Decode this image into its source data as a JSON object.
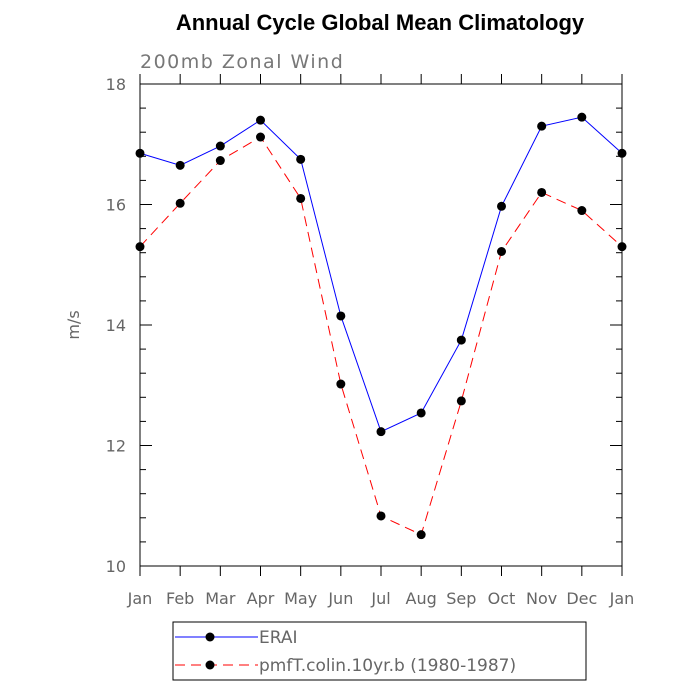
{
  "chart_data": {
    "type": "line",
    "title": "Annual Cycle Global Mean Climatology",
    "subtitle": "200mb Zonal Wind",
    "xlabel": "",
    "ylabel": "m/s",
    "categories": [
      "Jan",
      "Feb",
      "Mar",
      "Apr",
      "May",
      "Jun",
      "Jul",
      "Aug",
      "Sep",
      "Oct",
      "Nov",
      "Dec",
      "Jan"
    ],
    "ylim": [
      10,
      18
    ],
    "yticks": [
      "10",
      "12",
      "14",
      "16",
      "18"
    ],
    "grid": false,
    "legend_position": "bottom",
    "series": [
      {
        "name": "ERAI",
        "color": "#0000ff",
        "line_style": "solid",
        "marker": "filled-circle",
        "values": [
          16.85,
          16.65,
          16.97,
          17.4,
          16.75,
          14.15,
          12.23,
          12.54,
          13.75,
          15.97,
          17.3,
          17.45,
          16.85
        ]
      },
      {
        "name": "pmfT.colin.10yr.b (1980-1987)",
        "color": "#ff0000",
        "line_style": "dashed",
        "marker": "filled-circle",
        "values": [
          15.3,
          16.02,
          16.73,
          17.12,
          16.1,
          13.02,
          10.83,
          10.52,
          12.74,
          15.22,
          16.2,
          15.9,
          15.3
        ]
      }
    ]
  }
}
